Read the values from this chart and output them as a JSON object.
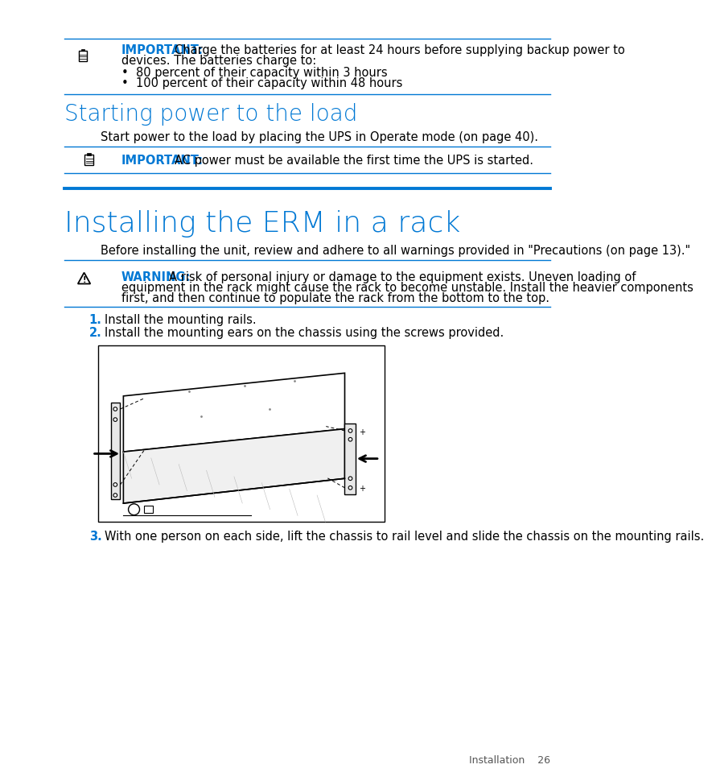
{
  "bg_color": "#ffffff",
  "blue_color": "#0078d4",
  "text_color": "#000000",
  "line_color": "#0078d4",
  "section1": {
    "important_note": {
      "label": "IMPORTANT:",
      "text1": "Charge the batteries for at least 24 hours before supplying backup power to",
      "text2": "devices. The batteries charge to:",
      "bullet1": "80 percent of their capacity within 3 hours",
      "bullet2": "100 percent of their capacity within 48 hours"
    }
  },
  "section2": {
    "heading": "Starting power to the load",
    "body": "Start power to the load by placing the UPS in Operate mode (on page 40).",
    "important_note": {
      "label": "IMPORTANT:",
      "text": "AC power must be available the first time the UPS is started."
    }
  },
  "section3": {
    "heading": "Installing the ERM in a rack",
    "intro": "Before installing the unit, review and adhere to all warnings provided in \"Precautions (on page 13).\"",
    "warning": {
      "label": "WARNING:",
      "text1": "A risk of personal injury or damage to the equipment exists. Uneven loading of",
      "text2": "equipment in the rack might cause the rack to become unstable. Install the heavier components",
      "text3": "first, and then continue to populate the rack from the bottom to the top."
    },
    "step1_num": "1.",
    "step1": "Install the mounting rails.",
    "step2_num": "2.",
    "step2": "Install the mounting ears on the chassis using the screws provided.",
    "step3_num": "3.",
    "step3": "With one person on each side, lift the chassis to rail level and slide the chassis on the mounting rails."
  },
  "footer": "Installation    26"
}
